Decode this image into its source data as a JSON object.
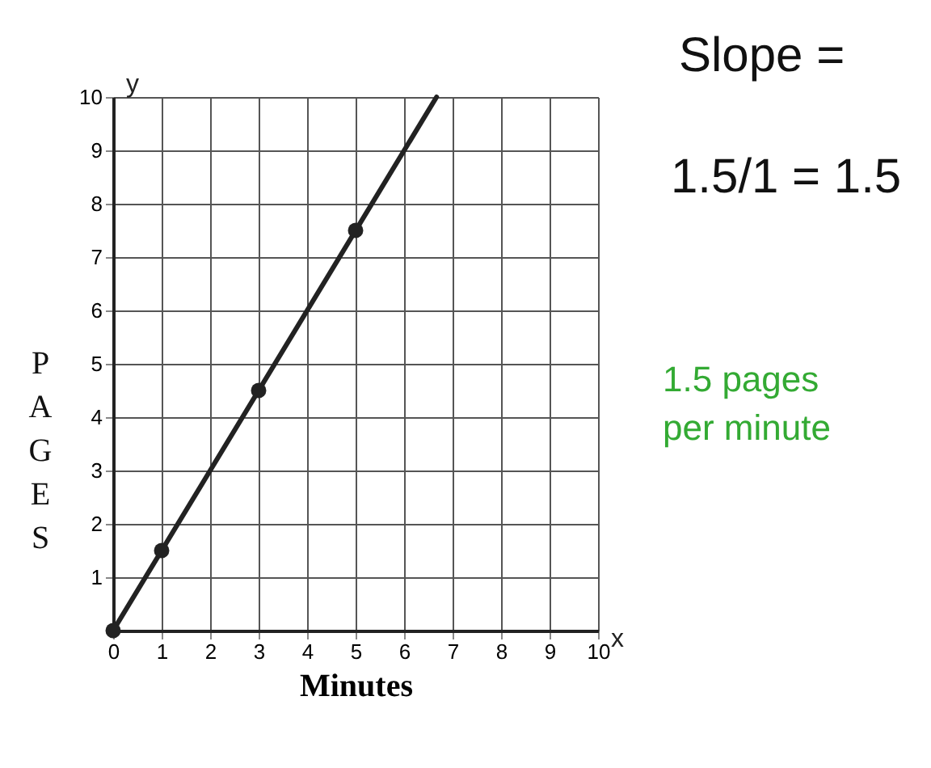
{
  "chart_data": {
    "type": "scatter",
    "xlabel": "Minutes",
    "ylabel": "PAGES",
    "xlim": [
      0,
      10
    ],
    "ylim": [
      0,
      10
    ],
    "xticks": [
      0,
      1,
      2,
      3,
      4,
      5,
      6,
      7,
      8,
      9,
      10
    ],
    "yticks": [
      {
        "value": 0,
        "label": null
      },
      1,
      2,
      3,
      4,
      5,
      6,
      7,
      8,
      9,
      10
    ],
    "grid": true,
    "series": [
      {
        "type": "line",
        "color": "#222222",
        "x": [
          0,
          6.67
        ],
        "values": [
          0,
          10
        ],
        "marker": "none",
        "line_style": "solid"
      },
      {
        "color": "#222222",
        "x": [
          0,
          1,
          3,
          5
        ],
        "values": [
          0,
          1.5,
          4.5,
          7.5
        ],
        "marker": "circle"
      }
    ],
    "annotations": [
      "x",
      "y",
      "Slope =",
      "1.5/1 = 1.5",
      "1.5 pages per minute"
    ]
  }
}
